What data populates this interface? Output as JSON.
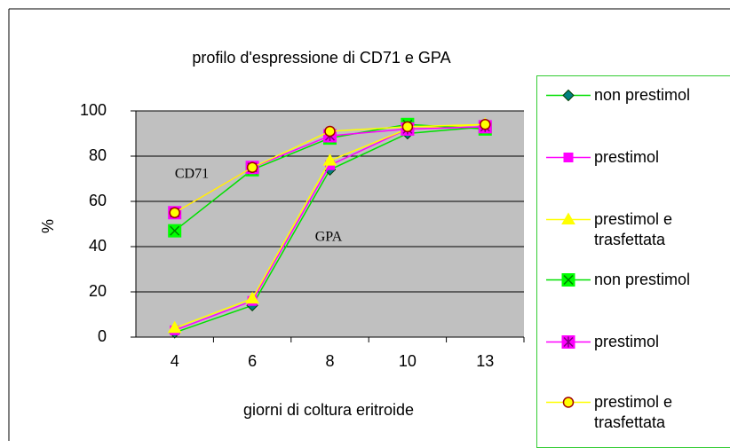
{
  "chart_data": {
    "type": "line",
    "title": "profilo d'espressione di CD71 e GPA",
    "xlabel": "giorni di coltura eritroide",
    "ylabel": "%",
    "annotations": [
      "CD71",
      "GPA"
    ],
    "categories": [
      "4",
      "6",
      "8",
      "10",
      "13"
    ],
    "ylim": [
      0,
      100
    ],
    "yticks": [
      0,
      20,
      40,
      60,
      80,
      100
    ],
    "grid": true,
    "series": [
      {
        "name": "non prestimol",
        "color": "#00e000",
        "marker": "diamond",
        "marker_fill": "#008080",
        "marker_stroke": "#004000",
        "values": [
          2,
          14,
          74,
          90,
          93
        ]
      },
      {
        "name": "prestimol",
        "color": "#ff00ff",
        "marker": "square",
        "marker_fill": "#ff00ff",
        "marker_stroke": "#ff00ff",
        "values": [
          3,
          16,
          76,
          92,
          93
        ]
      },
      {
        "name": "prestimol e trasfettata",
        "color": "#ffff00",
        "marker": "triangle",
        "marker_fill": "#ffff00",
        "marker_stroke": "#ffff00",
        "values": [
          4,
          17,
          78,
          92,
          94
        ]
      },
      {
        "name": "non prestimol",
        "color": "#00e000",
        "marker": "xbox",
        "marker_fill": "#00ff00",
        "marker_stroke": "#008000",
        "values": [
          47,
          74,
          88,
          94,
          92
        ]
      },
      {
        "name": "prestimol",
        "color": "#ff00ff",
        "marker": "star",
        "marker_fill": "#ff00ff",
        "marker_stroke": "#800080",
        "values": [
          55,
          75,
          89,
          92,
          93
        ]
      },
      {
        "name": "prestimol e trasfettata",
        "color": "#ffff00",
        "marker": "circle",
        "marker_fill": "#ffff00",
        "marker_stroke": "#a00000",
        "values": [
          55,
          75,
          91,
          93,
          94
        ]
      }
    ]
  }
}
